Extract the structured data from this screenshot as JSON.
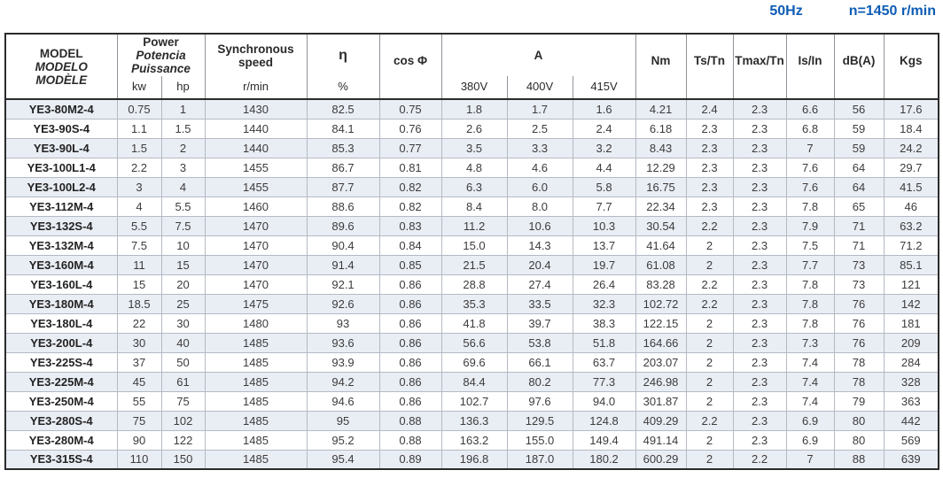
{
  "title": {
    "frequency": "50Hz",
    "speed": "n=1450 r/min"
  },
  "colors": {
    "accent_blue": "#0d5cb5",
    "stripe": "#e9edf4"
  },
  "table": {
    "header": {
      "model": [
        "MODEL",
        "MODELO",
        "MODÈLE"
      ],
      "power": {
        "title": [
          "Power",
          "Potencia",
          "Puissance"
        ],
        "sub": [
          "kw",
          "hp"
        ]
      },
      "sync_speed": {
        "title_line1": "Synchronous",
        "title_line2": "speed",
        "sub": "r/min"
      },
      "eta": {
        "title": "η",
        "sub": "%"
      },
      "cos_phi": "cos Φ",
      "current": {
        "title": "A",
        "sub": [
          "380V",
          "400V",
          "415V"
        ]
      },
      "others": [
        "Nm",
        "Ts/Tn",
        "Tmax/Tn",
        "Is/In",
        "dB(A)",
        "Kgs"
      ]
    },
    "rows": [
      [
        "YE3-80M2-4",
        "0.75",
        "1",
        "1430",
        "82.5",
        "0.75",
        "1.8",
        "1.7",
        "1.6",
        "4.21",
        "2.4",
        "2.3",
        "6.6",
        "56",
        "17.6"
      ],
      [
        "YE3-90S-4",
        "1.1",
        "1.5",
        "1440",
        "84.1",
        "0.76",
        "2.6",
        "2.5",
        "2.4",
        "6.18",
        "2.3",
        "2.3",
        "6.8",
        "59",
        "18.4"
      ],
      [
        "YE3-90L-4",
        "1.5",
        "2",
        "1440",
        "85.3",
        "0.77",
        "3.5",
        "3.3",
        "3.2",
        "8.43",
        "2.3",
        "2.3",
        "7",
        "59",
        "24.2"
      ],
      [
        "YE3-100L1-4",
        "2.2",
        "3",
        "1455",
        "86.7",
        "0.81",
        "4.8",
        "4.6",
        "4.4",
        "12.29",
        "2.3",
        "2.3",
        "7.6",
        "64",
        "29.7"
      ],
      [
        "YE3-100L2-4",
        "3",
        "4",
        "1455",
        "87.7",
        "0.82",
        "6.3",
        "6.0",
        "5.8",
        "16.75",
        "2.3",
        "2.3",
        "7.6",
        "64",
        "41.5"
      ],
      [
        "YE3-112M-4",
        "4",
        "5.5",
        "1460",
        "88.6",
        "0.82",
        "8.4",
        "8.0",
        "7.7",
        "22.34",
        "2.3",
        "2.3",
        "7.8",
        "65",
        "46"
      ],
      [
        "YE3-132S-4",
        "5.5",
        "7.5",
        "1470",
        "89.6",
        "0.83",
        "11.2",
        "10.6",
        "10.3",
        "30.54",
        "2.2",
        "2.3",
        "7.9",
        "71",
        "63.2"
      ],
      [
        "YE3-132M-4",
        "7.5",
        "10",
        "1470",
        "90.4",
        "0.84",
        "15.0",
        "14.3",
        "13.7",
        "41.64",
        "2",
        "2.3",
        "7.5",
        "71",
        "71.2"
      ],
      [
        "YE3-160M-4",
        "11",
        "15",
        "1470",
        "91.4",
        "0.85",
        "21.5",
        "20.4",
        "19.7",
        "61.08",
        "2",
        "2.3",
        "7.7",
        "73",
        "85.1"
      ],
      [
        "YE3-160L-4",
        "15",
        "20",
        "1470",
        "92.1",
        "0.86",
        "28.8",
        "27.4",
        "26.4",
        "83.28",
        "2.2",
        "2.3",
        "7.8",
        "73",
        "121"
      ],
      [
        "YE3-180M-4",
        "18.5",
        "25",
        "1475",
        "92.6",
        "0.86",
        "35.3",
        "33.5",
        "32.3",
        "102.72",
        "2.2",
        "2.3",
        "7.8",
        "76",
        "142"
      ],
      [
        "YE3-180L-4",
        "22",
        "30",
        "1480",
        "93",
        "0.86",
        "41.8",
        "39.7",
        "38.3",
        "122.15",
        "2",
        "2.3",
        "7.8",
        "76",
        "181"
      ],
      [
        "YE3-200L-4",
        "30",
        "40",
        "1485",
        "93.6",
        "0.86",
        "56.6",
        "53.8",
        "51.8",
        "164.66",
        "2",
        "2.3",
        "7.3",
        "76",
        "209"
      ],
      [
        "YE3-225S-4",
        "37",
        "50",
        "1485",
        "93.9",
        "0.86",
        "69.6",
        "66.1",
        "63.7",
        "203.07",
        "2",
        "2.3",
        "7.4",
        "78",
        "284"
      ],
      [
        "YE3-225M-4",
        "45",
        "61",
        "1485",
        "94.2",
        "0.86",
        "84.4",
        "80.2",
        "77.3",
        "246.98",
        "2",
        "2.3",
        "7.4",
        "78",
        "328"
      ],
      [
        "YE3-250M-4",
        "55",
        "75",
        "1485",
        "94.6",
        "0.86",
        "102.7",
        "97.6",
        "94.0",
        "301.87",
        "2",
        "2.3",
        "7.4",
        "79",
        "363"
      ],
      [
        "YE3-280S-4",
        "75",
        "102",
        "1485",
        "95",
        "0.88",
        "136.3",
        "129.5",
        "124.8",
        "409.29",
        "2.2",
        "2.3",
        "6.9",
        "80",
        "442"
      ],
      [
        "YE3-280M-4",
        "90",
        "122",
        "1485",
        "95.2",
        "0.88",
        "163.2",
        "155.0",
        "149.4",
        "491.14",
        "2",
        "2.3",
        "6.9",
        "80",
        "569"
      ],
      [
        "YE3-315S-4",
        "110",
        "150",
        "1485",
        "95.4",
        "0.89",
        "196.8",
        "187.0",
        "180.2",
        "600.29",
        "2",
        "2.2",
        "7",
        "88",
        "639"
      ]
    ]
  }
}
